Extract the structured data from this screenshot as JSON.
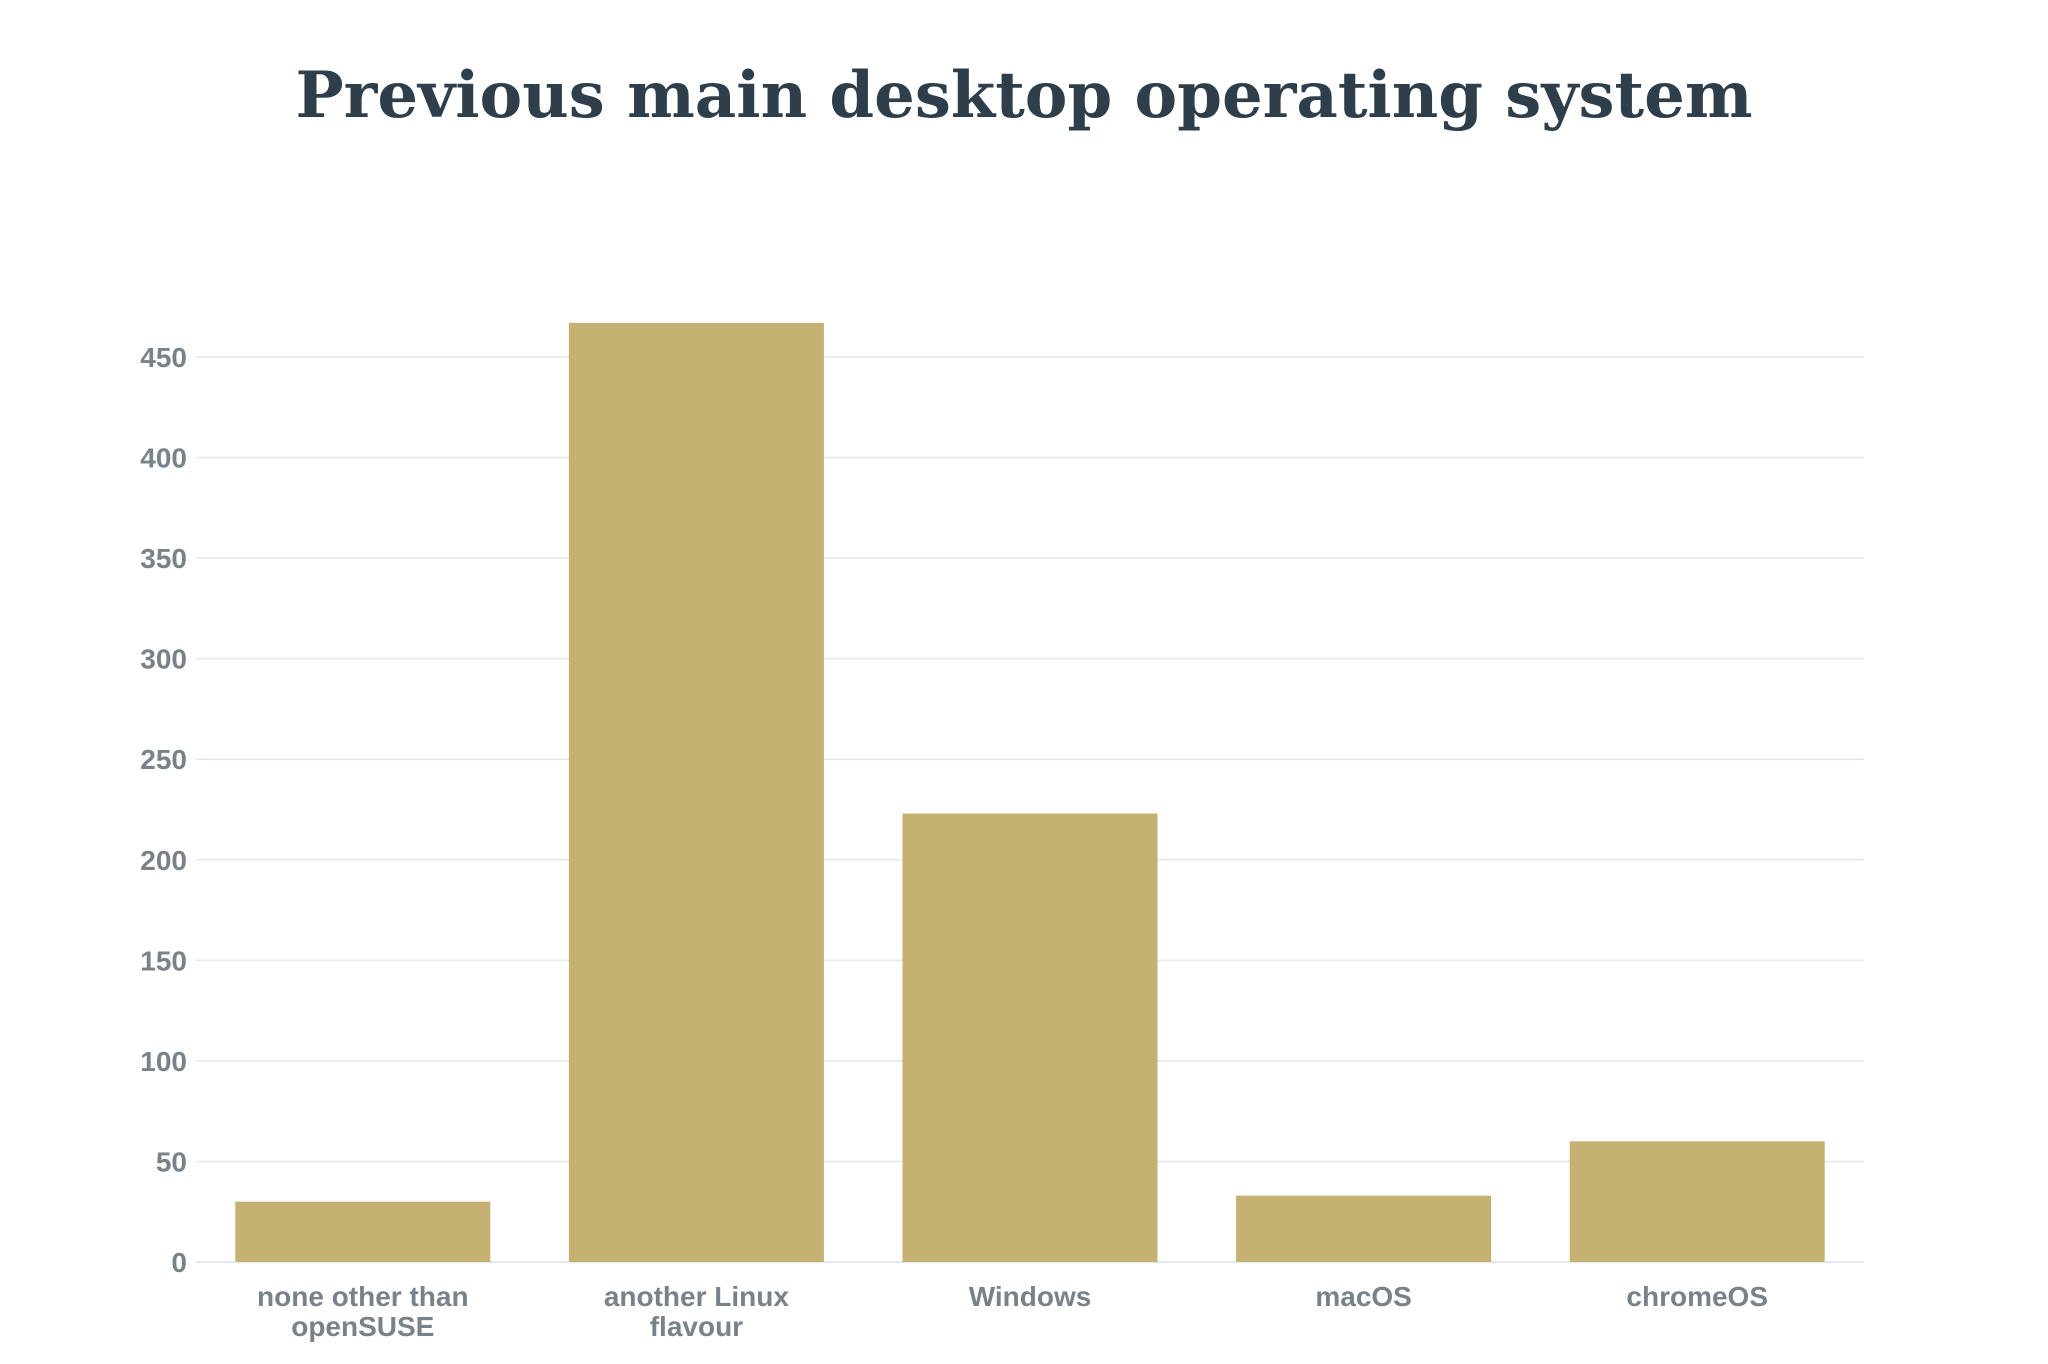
{
  "chart_data": {
    "type": "bar",
    "title": "Previous main desktop operating system",
    "categories": [
      [
        "none other than",
        "openSUSE"
      ],
      [
        "another Linux",
        "flavour"
      ],
      [
        "Windows"
      ],
      [
        "macOS"
      ],
      [
        "chromeOS"
      ]
    ],
    "values": [
      30,
      467,
      223,
      33,
      60
    ],
    "xlabel": "",
    "ylabel": "",
    "ylim": [
      0,
      450
    ],
    "yticks": [
      0,
      50,
      100,
      150,
      200,
      250,
      300,
      350,
      400,
      450
    ],
    "grid": true,
    "legend": "none",
    "bar_color": "#c5b172",
    "grid_color": "#dde8f0"
  }
}
